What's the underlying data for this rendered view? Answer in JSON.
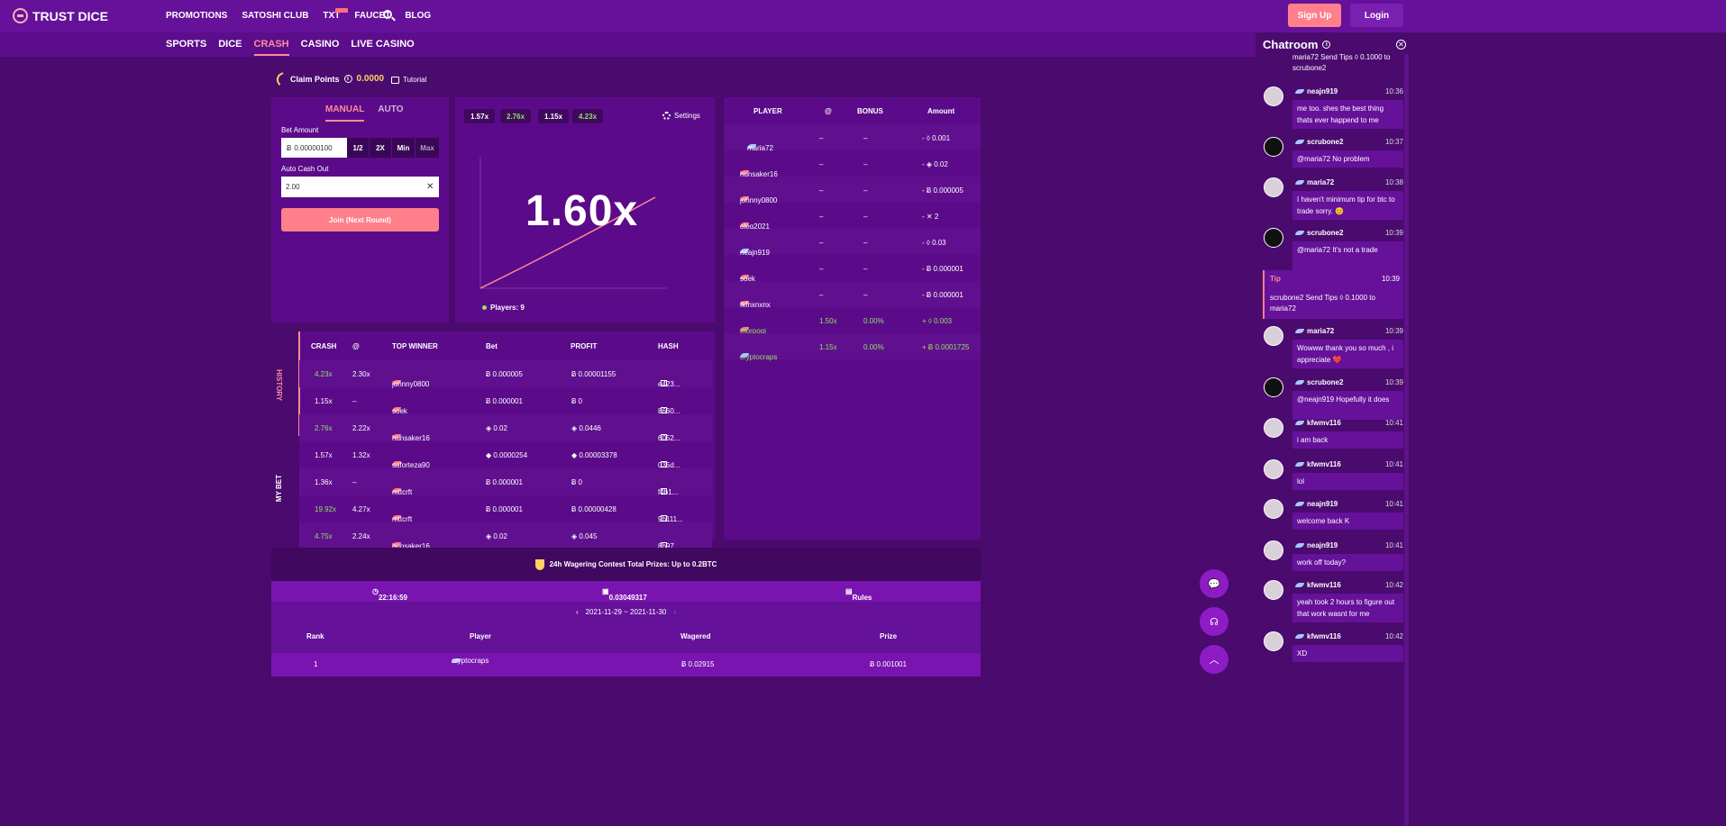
{
  "brand": {
    "logo_text": "TRUST DICE"
  },
  "topnav": [
    "PROMOTIONS",
    "SATOSHI CLUB",
    "TXT",
    "FAUCET",
    "BLOG"
  ],
  "auth": {
    "signup": "Sign Up",
    "login": "Login"
  },
  "subnav": [
    "SPORTS",
    "DICE",
    "CRASH",
    "CASINO",
    "LIVE CASINO"
  ],
  "claim": {
    "label": "Claim Points",
    "value": "0.0000",
    "tutorial": "Tutorial"
  },
  "bet": {
    "tabs": [
      "MANUAL",
      "AUTO"
    ],
    "bet_amount_label": "Bet Amount",
    "bet_value": "0.00000100",
    "buttons": [
      "1/2",
      "2X",
      "Min",
      "Max"
    ],
    "auto_cashout_label": "Auto Cash Out",
    "auto_cashout_value": "2.00",
    "join_label": "Join (Next Round)"
  },
  "chart": {
    "recent": [
      "1.57x",
      "2.76x",
      "1.15x",
      "4.23x"
    ],
    "settings_label": "Settings",
    "multiplier": "1.60x",
    "players": "Players: 9"
  },
  "players_table": {
    "headers": [
      "PLAYER",
      "@",
      "BONUS",
      "Amount"
    ],
    "rows": [
      {
        "name": "maria72",
        "at": "–",
        "bonus": "–",
        "amount": "- ◊ 0.001",
        "win": false
      },
      {
        "name": "hunsaker16",
        "at": "–",
        "bonus": "–",
        "amount": "- ◈ 0.02",
        "win": false
      },
      {
        "name": "johnny0800",
        "at": "–",
        "bonus": "–",
        "amount": "- Ƀ 0.000005",
        "win": false
      },
      {
        "name": "oleg2021",
        "at": "–",
        "bonus": "–",
        "amount": "- ✕ 2",
        "win": false
      },
      {
        "name": "neajn919",
        "at": "–",
        "bonus": "–",
        "amount": "- ◊ 0.03",
        "win": false
      },
      {
        "name": "soek",
        "at": "–",
        "bonus": "–",
        "amount": "- Ƀ 0.000001",
        "win": false
      },
      {
        "name": "fkfnxnxnx",
        "at": "–",
        "bonus": "–",
        "amount": "- Ƀ 0.000001",
        "win": false
      },
      {
        "name": "thorpogi",
        "at": "1.50x",
        "bonus": "0.00%",
        "amount": "+ ◊ 0.003",
        "win": true
      },
      {
        "name": "cryptocraps",
        "at": "1.15x",
        "bonus": "0.00%",
        "amount": "+ Ƀ 0.0001725",
        "win": true
      }
    ]
  },
  "history": {
    "vtabs": [
      "HISTORY",
      "MY BET"
    ],
    "headers": [
      "CRASH",
      "@",
      "TOP WINNER",
      "Bet",
      "PROFIT",
      "HASH"
    ],
    "rows": [
      {
        "crash": "4.23x",
        "at": "2.30x",
        "winner": "johnny0800",
        "bet": "Ƀ 0.000005",
        "profit": "Ƀ 0.00001155",
        "hash": "e423...",
        "green": true
      },
      {
        "crash": "1.15x",
        "at": "–",
        "winner": "soek",
        "bet": "Ƀ 0.000001",
        "profit": "Ƀ 0",
        "hash": "8660...",
        "green": false
      },
      {
        "crash": "2.76x",
        "at": "2.22x",
        "winner": "hunsaker16",
        "bet": "◈ 0.02",
        "profit": "◈ 0.0446",
        "hash": "6052...",
        "green": true
      },
      {
        "crash": "1.57x",
        "at": "1.32x",
        "winner": "saforteza90",
        "bet": "◆ 0.0000254",
        "profit": "◆ 0.00003378",
        "hash": "035d...",
        "green": false
      },
      {
        "crash": "1.36x",
        "at": "–",
        "winner": "mttcrft",
        "bet": "Ƀ 0.000001",
        "profit": "Ƀ 0",
        "hash": "f4b1...",
        "green": false
      },
      {
        "crash": "19.92x",
        "at": "4.27x",
        "winner": "mttcrft",
        "bet": "Ƀ 0.000001",
        "profit": "Ƀ 0.00000428",
        "hash": "9b111...",
        "green": true
      },
      {
        "crash": "4.75x",
        "at": "2.24x",
        "winner": "hunsaker16",
        "bet": "◈ 0.02",
        "profit": "◈ 0.045",
        "hash": "8b97...",
        "green": true
      }
    ]
  },
  "contest": {
    "title": "24h Wagering Contest Total Prizes: Up to 0.2BTC",
    "timer": "22:16:59",
    "pool": "0.03049317",
    "rules": "Rules",
    "range": "2021-11-29 ~ 2021-11-30",
    "headers": [
      "Rank",
      "Player",
      "Wagered",
      "Prize"
    ],
    "row": {
      "rank": "1",
      "player": "cryptocraps",
      "wagered": "Ƀ 0.02915",
      "prize": "Ƀ 0.001001"
    }
  },
  "chat": {
    "title": "Chatroom",
    "first": "maria72 Send Tips ◊ 0.1000 to scrubone2",
    "tip": {
      "label": "Tip",
      "time": "10:39",
      "text": "scrubone2 Send Tips ◊ 0.1000 to maria72"
    },
    "messages": [
      {
        "name": "neajn919",
        "time": "10:36",
        "text": "me too. shes the best thing thats ever happend to me",
        "dark": false
      },
      {
        "name": "scrubone2",
        "time": "10:37",
        "text": "@maria72 No problem",
        "dark": true
      },
      {
        "name": "maria72",
        "time": "10:38",
        "text": "I haven't minimum tip for btc to trade sorry. 😊",
        "dark": false
      },
      {
        "name": "scrubone2",
        "time": "10:39",
        "text": "@maria72 It's not a trade",
        "dark": true
      },
      {
        "name": "maria72",
        "time": "10:39",
        "text": "Wowww thank you so much , i appreciate ❤️",
        "dark": false
      },
      {
        "name": "scrubone2",
        "time": "10:39",
        "text": "@neajn919 Hopefully it does",
        "dark": true
      },
      {
        "name": "kfwmv116",
        "time": "10:41",
        "text": "i am back",
        "dark": false
      },
      {
        "name": "kfwmv116",
        "time": "10:41",
        "text": "lol",
        "dark": false
      },
      {
        "name": "neajn919",
        "time": "10:41",
        "text": "welcome back K",
        "dark": false
      },
      {
        "name": "neajn919",
        "time": "10:41",
        "text": "work off today?",
        "dark": false
      },
      {
        "name": "kfwmv116",
        "time": "10:42",
        "text": "yeah took 2 hours to figure out that work wasnt for me",
        "dark": false
      },
      {
        "name": "kfwmv116",
        "time": "10:42",
        "text": "XD",
        "dark": false
      }
    ]
  }
}
